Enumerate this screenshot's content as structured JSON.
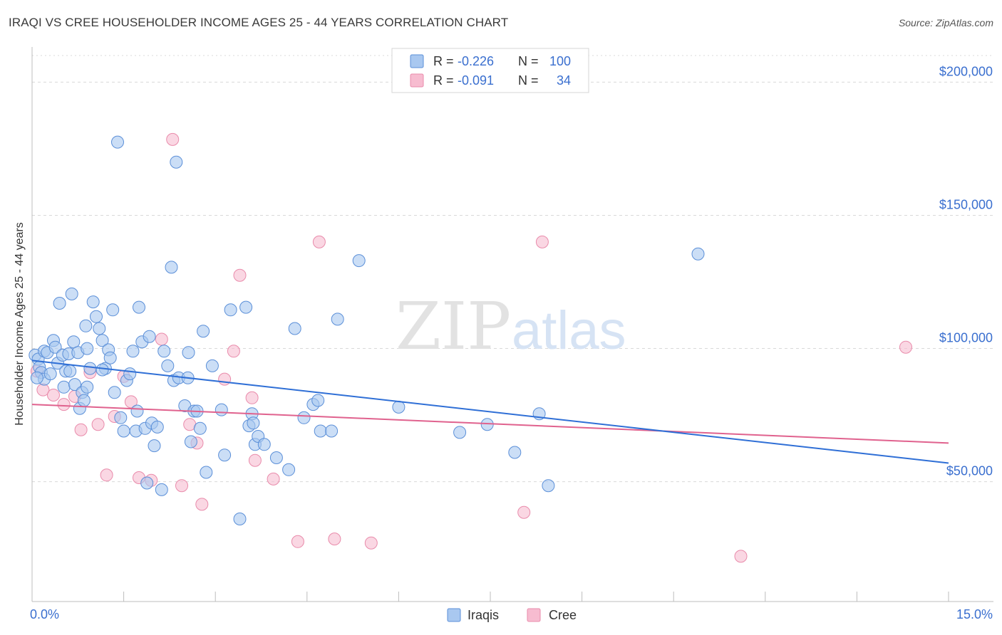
{
  "title": "IRAQI VS CREE HOUSEHOLDER INCOME AGES 25 - 44 YEARS CORRELATION CHART",
  "source": "Source: ZipAtlas.com",
  "watermark": {
    "zip": "ZIP",
    "atlas": "atlas"
  },
  "colors": {
    "iraqis_fill": "#a9c8f0",
    "iraqis_stroke": "#5b8fd8",
    "iraqis_line": "#2f6fd6",
    "cree_fill": "#f7bcd0",
    "cree_stroke": "#e98bab",
    "cree_line": "#e0628e",
    "tick_label": "#3a6fcf",
    "grid": "#d9d9d9"
  },
  "legend": {
    "rows": [
      {
        "r_label": "R = ",
        "r_value": "-0.226",
        "n_label": "N = ",
        "n_value": "100"
      },
      {
        "r_label": "R = ",
        "r_value": "-0.091",
        "n_label": "N = ",
        "n_value": "34"
      }
    ]
  },
  "bottom_legend": [
    "Iraqis",
    "Cree"
  ],
  "chart_data": {
    "type": "scatter",
    "title": "IRAQI VS CREE HOUSEHOLDER INCOME AGES 25 - 44 YEARS CORRELATION CHART",
    "xlabel": "",
    "ylabel": "Householder Income Ages 25 - 44 years",
    "xlim": [
      0,
      15
    ],
    "ylim": [
      5000,
      210000
    ],
    "x_tick_labels": [
      "0.0%",
      "15.0%"
    ],
    "y_ticks": [
      50000,
      100000,
      150000,
      200000
    ],
    "y_tick_labels": [
      "$50,000",
      "$100,000",
      "$150,000",
      "$200,000"
    ],
    "grid": true,
    "legend_position": "top-center",
    "series": [
      {
        "name": "Iraqis",
        "r": -0.226,
        "n": 100,
        "trend": {
          "x": [
            0,
            15
          ],
          "y": [
            95500,
            57000
          ]
        },
        "points": [
          [
            0.05,
            97500
          ],
          [
            0.1,
            96000
          ],
          [
            0.12,
            93000
          ],
          [
            0.15,
            91000
          ],
          [
            0.2,
            99000
          ],
          [
            0.2,
            88500
          ],
          [
            0.25,
            98500
          ],
          [
            0.3,
            90500
          ],
          [
            0.35,
            103000
          ],
          [
            0.38,
            100500
          ],
          [
            0.42,
            94500
          ],
          [
            0.45,
            117000
          ],
          [
            0.5,
            97500
          ],
          [
            0.52,
            85500
          ],
          [
            0.55,
            91500
          ],
          [
            0.6,
            98000
          ],
          [
            0.62,
            91500
          ],
          [
            0.65,
            120500
          ],
          [
            0.68,
            102500
          ],
          [
            0.7,
            86500
          ],
          [
            0.75,
            98500
          ],
          [
            0.78,
            77500
          ],
          [
            0.82,
            83500
          ],
          [
            0.85,
            80500
          ],
          [
            0.88,
            108500
          ],
          [
            0.9,
            85500
          ],
          [
            0.95,
            92500
          ],
          [
            1.0,
            117500
          ],
          [
            1.05,
            112000
          ],
          [
            1.1,
            107500
          ],
          [
            1.15,
            103000
          ],
          [
            1.2,
            92500
          ],
          [
            1.25,
            99500
          ],
          [
            1.28,
            96500
          ],
          [
            1.32,
            114500
          ],
          [
            1.35,
            83500
          ],
          [
            1.4,
            177500
          ],
          [
            1.45,
            74000
          ],
          [
            1.5,
            69000
          ],
          [
            1.55,
            88000
          ],
          [
            1.6,
            90500
          ],
          [
            1.65,
            99000
          ],
          [
            1.7,
            69000
          ],
          [
            1.72,
            76500
          ],
          [
            1.75,
            115500
          ],
          [
            1.8,
            102500
          ],
          [
            1.85,
            70000
          ],
          [
            1.88,
            49500
          ],
          [
            1.92,
            104500
          ],
          [
            1.96,
            72000
          ],
          [
            2.0,
            63500
          ],
          [
            2.05,
            70500
          ],
          [
            2.12,
            47000
          ],
          [
            2.16,
            99000
          ],
          [
            2.22,
            93500
          ],
          [
            2.28,
            130500
          ],
          [
            2.32,
            88000
          ],
          [
            2.36,
            170000
          ],
          [
            2.4,
            89000
          ],
          [
            2.5,
            78500
          ],
          [
            2.56,
            98500
          ],
          [
            2.6,
            65000
          ],
          [
            2.65,
            76500
          ],
          [
            2.7,
            76500
          ],
          [
            2.75,
            70000
          ],
          [
            2.8,
            106500
          ],
          [
            2.85,
            53500
          ],
          [
            2.95,
            93500
          ],
          [
            3.1,
            77000
          ],
          [
            3.15,
            60000
          ],
          [
            3.25,
            114500
          ],
          [
            3.4,
            36000
          ],
          [
            3.5,
            115500
          ],
          [
            3.55,
            71000
          ],
          [
            3.6,
            75500
          ],
          [
            3.62,
            72000
          ],
          [
            3.65,
            64000
          ],
          [
            3.7,
            67000
          ],
          [
            3.8,
            64000
          ],
          [
            4.0,
            59000
          ],
          [
            4.2,
            54500
          ],
          [
            4.3,
            107500
          ],
          [
            4.45,
            74000
          ],
          [
            4.6,
            79000
          ],
          [
            4.68,
            80500
          ],
          [
            4.72,
            69000
          ],
          [
            4.9,
            69000
          ],
          [
            5.0,
            111000
          ],
          [
            5.35,
            133000
          ],
          [
            6.0,
            78000
          ],
          [
            7.0,
            68500
          ],
          [
            7.45,
            71500
          ],
          [
            7.9,
            61000
          ],
          [
            8.3,
            75500
          ],
          [
            8.45,
            48500
          ],
          [
            10.9,
            135500
          ],
          [
            0.08,
            89000
          ],
          [
            0.9,
            100000
          ],
          [
            1.15,
            92000
          ],
          [
            2.55,
            89000
          ]
        ]
      },
      {
        "name": "Cree",
        "r": -0.091,
        "n": 34,
        "trend": {
          "x": [
            0,
            15
          ],
          "y": [
            79000,
            64500
          ]
        },
        "points": [
          [
            0.08,
            91500
          ],
          [
            0.18,
            84500
          ],
          [
            0.35,
            82500
          ],
          [
            0.52,
            79000
          ],
          [
            0.7,
            82000
          ],
          [
            0.8,
            69500
          ],
          [
            0.95,
            91000
          ],
          [
            1.08,
            71500
          ],
          [
            1.22,
            52500
          ],
          [
            1.35,
            74500
          ],
          [
            1.5,
            89500
          ],
          [
            1.62,
            80000
          ],
          [
            1.75,
            51500
          ],
          [
            1.95,
            50500
          ],
          [
            2.12,
            103500
          ],
          [
            2.3,
            178500
          ],
          [
            2.45,
            48500
          ],
          [
            2.58,
            71500
          ],
          [
            2.7,
            64500
          ],
          [
            2.78,
            41500
          ],
          [
            3.15,
            88500
          ],
          [
            3.3,
            99000
          ],
          [
            3.4,
            127500
          ],
          [
            3.6,
            81500
          ],
          [
            3.65,
            58000
          ],
          [
            3.95,
            51000
          ],
          [
            4.35,
            27500
          ],
          [
            4.7,
            140000
          ],
          [
            4.95,
            28500
          ],
          [
            5.55,
            27000
          ],
          [
            8.05,
            38500
          ],
          [
            8.35,
            140000
          ],
          [
            11.6,
            22000
          ],
          [
            14.3,
            100500
          ]
        ]
      }
    ]
  }
}
